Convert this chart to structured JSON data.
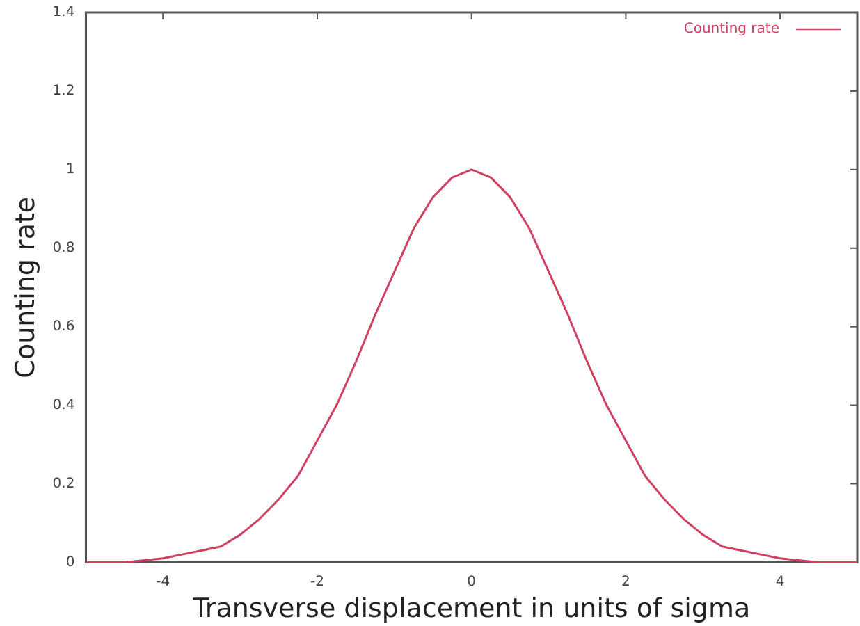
{
  "chart_data": {
    "type": "line",
    "xlabel": "Transverse displacement in units of sigma",
    "ylabel": "Counting rate",
    "x": [
      -5,
      -4.5,
      -4,
      -3.75,
      -3.5,
      -3.25,
      -3,
      -2.75,
      -2.5,
      -2.25,
      -2,
      -1.75,
      -1.5,
      -1.25,
      -1,
      -0.75,
      -0.5,
      -0.25,
      0,
      0.25,
      0.5,
      0.75,
      1,
      1.25,
      1.5,
      1.75,
      2,
      2.25,
      2.5,
      2.75,
      3,
      3.25,
      3.5,
      3.75,
      4,
      4.5,
      5
    ],
    "series": [
      {
        "name": "Counting rate",
        "color": "#d04060",
        "values": [
          0,
          0,
          0.01,
          0.02,
          0.03,
          0.04,
          0.07,
          0.11,
          0.16,
          0.22,
          0.31,
          0.4,
          0.51,
          0.63,
          0.74,
          0.85,
          0.93,
          0.98,
          1,
          0.98,
          0.93,
          0.85,
          0.74,
          0.63,
          0.51,
          0.4,
          0.31,
          0.22,
          0.16,
          0.11,
          0.07,
          0.04,
          0.03,
          0.02,
          0.01,
          0,
          0
        ]
      }
    ],
    "xlim": [
      -5,
      5
    ],
    "xticks": [
      -4,
      -2,
      0,
      2,
      4
    ],
    "ylim": [
      0,
      1.4
    ],
    "yticks": [
      0,
      0.2,
      0.4,
      0.6,
      0.8,
      1,
      1.2,
      1.4
    ],
    "grid": false,
    "legend": "top right",
    "marker": "none",
    "line_style": "solid"
  }
}
